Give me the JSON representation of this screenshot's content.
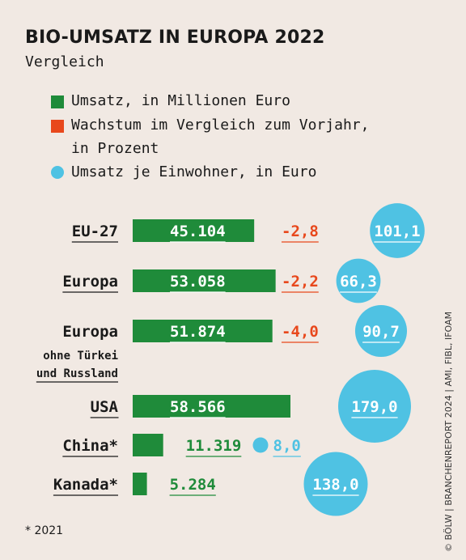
{
  "title": "BIO-UMSATZ IN EUROPA 2022",
  "subtitle": "Vergleich",
  "legend": [
    {
      "label_line1": "Umsatz, in Millionen Euro",
      "label_line2": "",
      "color": "#1f8b3a",
      "shape": "square"
    },
    {
      "label_line1": "Wachstum im Vergleich zum Vorjahr,",
      "label_line2": "in Prozent",
      "color": "#e8481c",
      "shape": "square"
    },
    {
      "label_line1": "Umsatz je Einwohner, in Euro",
      "label_line2": "",
      "color": "#4fc2e3",
      "shape": "circle"
    }
  ],
  "chart_data": {
    "type": "bar",
    "categories": [
      "EU-27",
      "Europa",
      "Europa ohne Türkei und Russland",
      "USA",
      "China*",
      "Kanada*"
    ],
    "category_labels": [
      {
        "line1": "EU-27",
        "line2": "",
        "line3": ""
      },
      {
        "line1": "Europa",
        "line2": "",
        "line3": ""
      },
      {
        "line1": "Europa",
        "line2": "ohne Türkei",
        "line3": "und Russland"
      },
      {
        "line1": "USA",
        "line2": "",
        "line3": ""
      },
      {
        "line1": "China*",
        "line2": "",
        "line3": ""
      },
      {
        "line1": "Kanada*",
        "line2": "",
        "line3": ""
      }
    ],
    "series": [
      {
        "name": "Umsatz, in Millionen Euro",
        "values": [
          45104,
          53058,
          51874,
          58566,
          11319,
          5284
        ],
        "labels": [
          "45.104",
          "53.058",
          "51.874",
          "58.566",
          "11.319",
          "5.284"
        ],
        "color": "#1f8b3a"
      },
      {
        "name": "Wachstum im Vergleich zum Vorjahr, in Prozent",
        "values": [
          -2.8,
          -2.2,
          -4.0,
          null,
          null,
          null
        ],
        "labels": [
          "-2,8",
          "-2,2",
          "-4,0",
          "",
          "",
          ""
        ],
        "color": "#e8481c"
      },
      {
        "name": "Umsatz je Einwohner, in Euro",
        "values": [
          101.1,
          66.3,
          90.7,
          179.0,
          8.0,
          138.0
        ],
        "labels": [
          "101,1",
          "66,3",
          "90,7",
          "179,0",
          "8,0",
          "138,0"
        ],
        "color": "#4fc2e3"
      }
    ]
  },
  "footnote": "* 2021",
  "credit": "© BÖLW | BRANCHENREPORT 2024 | AMI, FIBL, IFOAM"
}
